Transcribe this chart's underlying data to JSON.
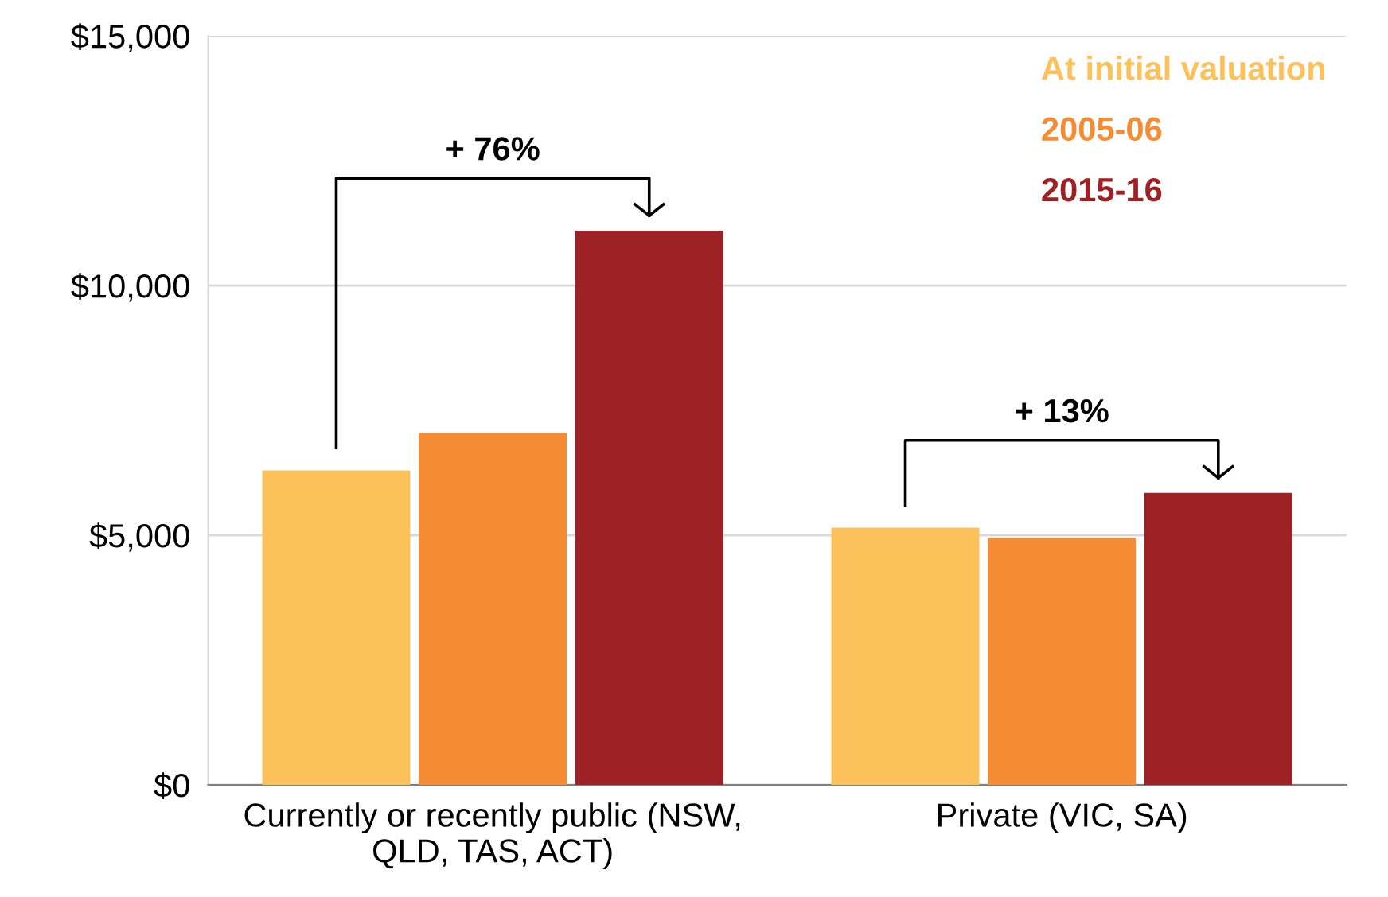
{
  "chart_data": {
    "type": "bar",
    "categories": [
      "Currently or recently public (NSW, QLD, TAS, ACT)",
      "Private (VIC, SA)"
    ],
    "series": [
      {
        "name": "At initial valuation",
        "color": "#fdc15b",
        "values": [
          6300,
          5150
        ]
      },
      {
        "name": "2005-06",
        "color": "#f58c33",
        "values": [
          7050,
          4950
        ]
      },
      {
        "name": "2015-16",
        "color": "#9e2126",
        "values": [
          11100,
          5850
        ]
      }
    ],
    "ylim": [
      0,
      15000
    ],
    "yticks": [
      {
        "value": 0,
        "label": "$0"
      },
      {
        "value": 5000,
        "label": "$5,000"
      },
      {
        "value": 10000,
        "label": "$10,000"
      },
      {
        "value": 15000,
        "label": "$15,000"
      }
    ],
    "grid": "y",
    "legend": "top right",
    "annotations": [
      "+ 76%",
      "+ 13%"
    ]
  }
}
